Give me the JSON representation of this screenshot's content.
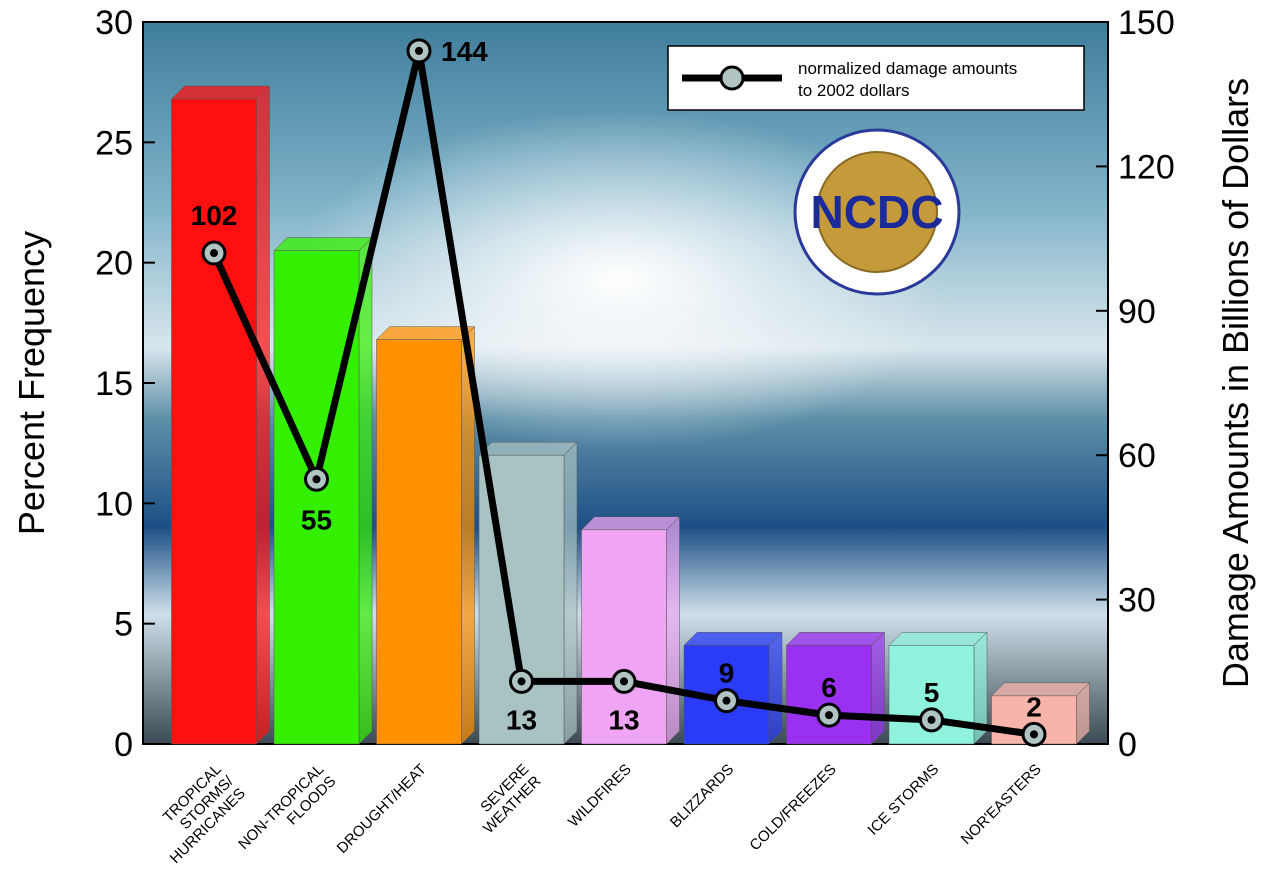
{
  "chart_data": {
    "type": "bar",
    "y_label": "Percent Frequency",
    "y2_label": "Damage Amounts in Billions of Dollars",
    "categories": [
      "TROPICAL\nSTORMS/\nHURRICANES",
      "NON-TROPICAL\nFLOODS",
      "DROUGHT/HEAT",
      "SEVERE\nWEATHER",
      "WILDFIRES",
      "BLIZZARDS",
      "COLD/FREEZES",
      "ICE STORMS",
      "NOR'EASTERS"
    ],
    "series": [
      {
        "name": "Percent Frequency",
        "type": "bar",
        "colors": [
          "#ff1010",
          "#33f000",
          "#ff9000",
          "#a9c2c2",
          "#f0a4f4",
          "#2a3cf8",
          "#9a30f0",
          "#8ef2dc",
          "#f6b4aa"
        ],
        "values": [
          26.8,
          20.5,
          16.8,
          12.0,
          8.9,
          4.1,
          4.1,
          4.1,
          2.0
        ]
      },
      {
        "name": "normalized damage amounts\nto 2002 dollars",
        "type": "line",
        "axis": "y2",
        "color": "#000000",
        "values": [
          102,
          55,
          144,
          13,
          13,
          9,
          6,
          5,
          2
        ]
      }
    ],
    "ylim": [
      0,
      30
    ],
    "yticks": [
      0,
      5,
      10,
      15,
      20,
      25,
      30
    ],
    "y2lim": [
      0,
      150
    ],
    "y2ticks": [
      0,
      30,
      60,
      90,
      120,
      150
    ],
    "logo": "NCDC"
  }
}
